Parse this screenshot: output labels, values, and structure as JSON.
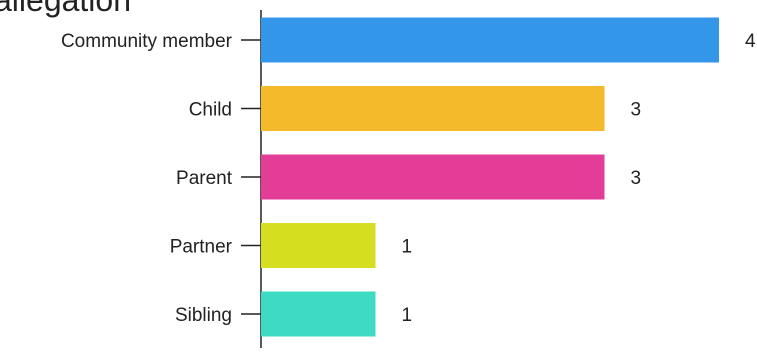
{
  "chart_data": {
    "type": "bar",
    "orientation": "horizontal",
    "title": "allegation",
    "categories": [
      "Community member",
      "Child",
      "Parent",
      "Partner",
      "Sibling"
    ],
    "values": [
      4,
      3,
      3,
      1,
      1
    ],
    "colors": [
      "#3396e8",
      "#f5b92c",
      "#e43d98",
      "#d6de20",
      "#3ddbc3"
    ],
    "xlim": [
      0,
      4
    ],
    "grid": false,
    "data_labels": true
  }
}
